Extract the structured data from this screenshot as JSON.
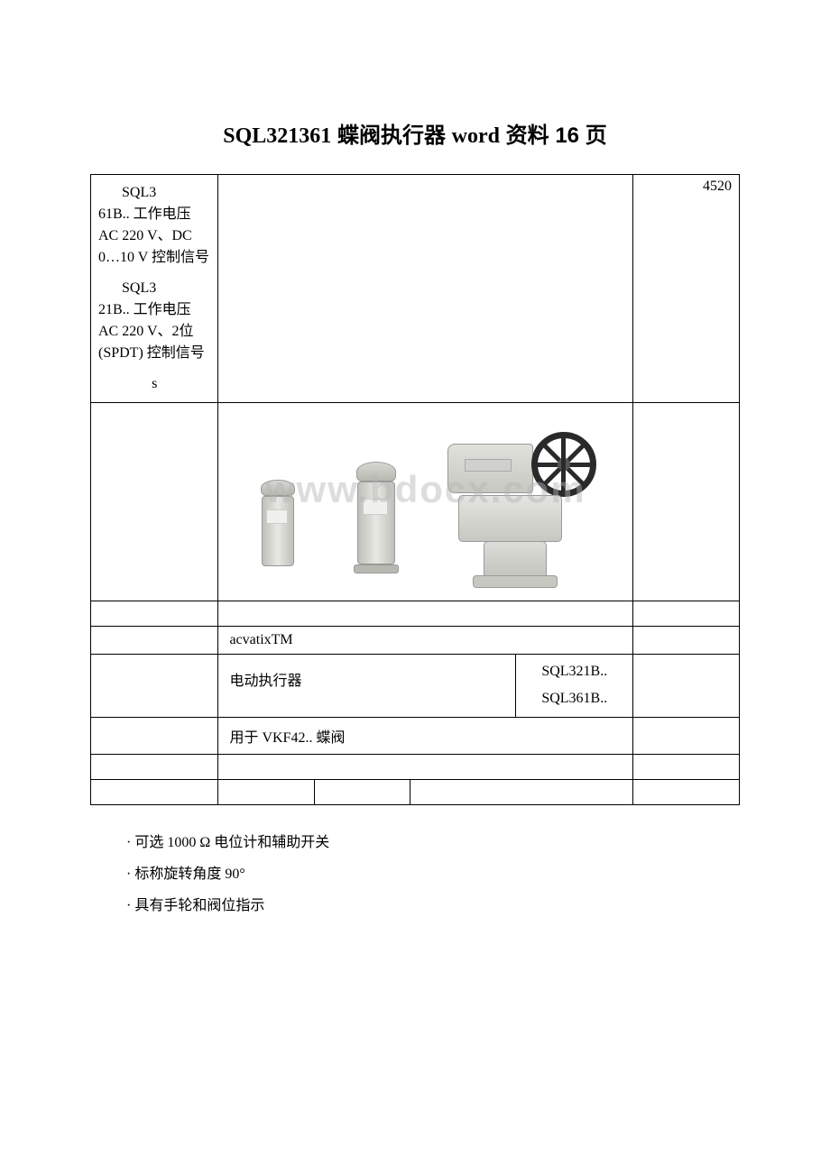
{
  "document": {
    "title_model": "SQL321361",
    "title_cn": " 蝶阀执行器 ",
    "title_word": "word",
    "title_suffix": " 资料 16 页"
  },
  "table": {
    "spec1_prefix": "SQL3",
    "spec1_body": "61B.. 工作电压 AC 220 V、DC 0…10 V 控制信号",
    "spec2_prefix": "SQL3",
    "spec2_body": "21B.. 工作电压 AC 220 V、2位 (SPDT) 控制信号",
    "spec3": "s",
    "number": "4520",
    "watermark": "www.bdocx.com",
    "brand": "acvatixTM",
    "actuator_label": "电动执行器",
    "model_a": "SQL321B..",
    "model_b": "SQL361B..",
    "usage": "用于 VKF42.. 蝶阀"
  },
  "bullets": [
    "可选 1000 Ω 电位计和辅助开关",
    "标称旋转角度 90°",
    "具有手轮和阀位指示"
  ],
  "colors": {
    "border": "#000000",
    "text": "#000000",
    "device_light": "#e8e8e4",
    "device_dark": "#c0c0ba",
    "handwheel": "#2a2a2a",
    "watermark": "rgba(180,180,180,0.45)"
  }
}
